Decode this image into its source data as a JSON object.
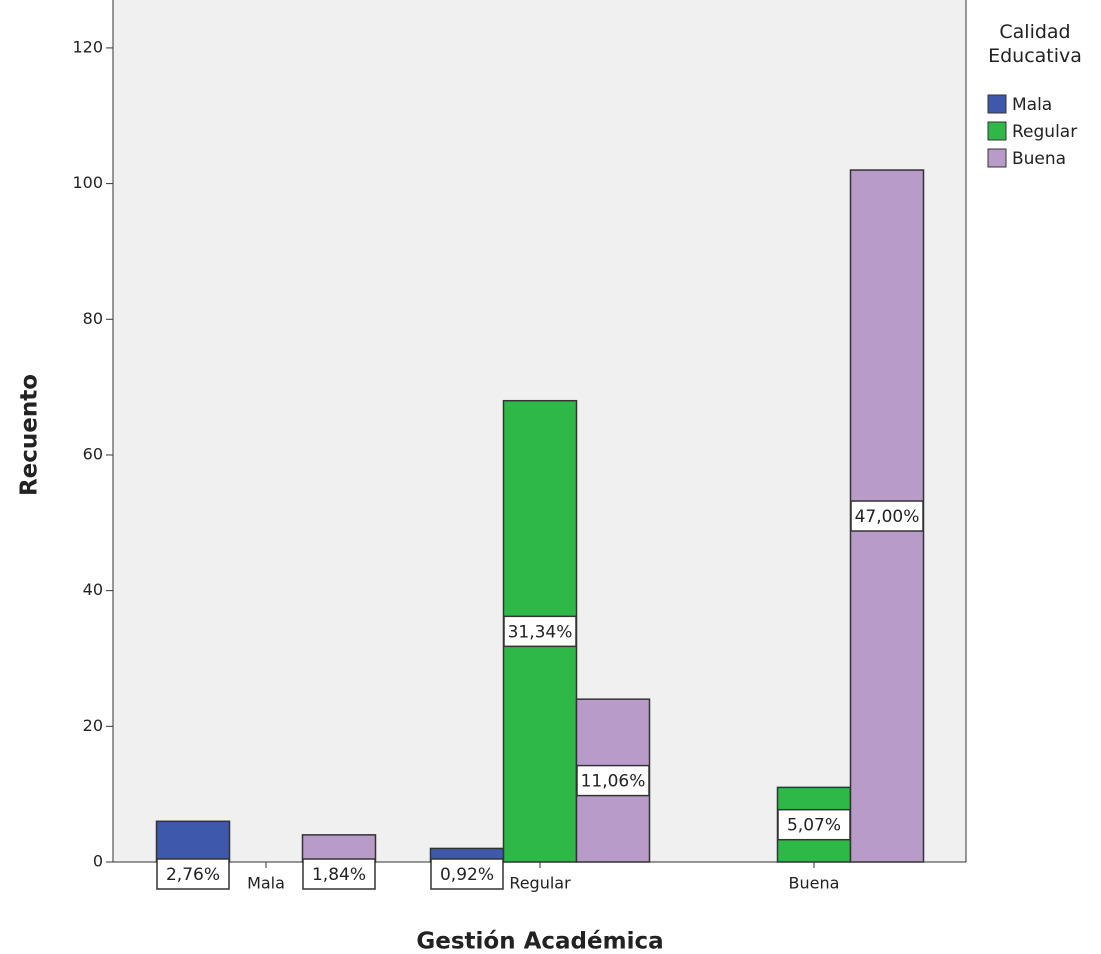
{
  "chart_data": {
    "type": "bar",
    "x_label": "Gestión Académica",
    "y_label": "Recuento",
    "legend_title": "Calidad Educativa",
    "categories": [
      "Mala",
      "Regular",
      "Buena"
    ],
    "series": [
      {
        "name": "Mala",
        "color": "#3e58ac",
        "values": [
          6,
          2,
          null
        ],
        "value_labels": [
          "2,76%",
          "0,92%",
          null
        ]
      },
      {
        "name": "Regular",
        "color": "#2eb848",
        "values": [
          null,
          68,
          11
        ],
        "value_labels": [
          null,
          "31,34%",
          "5,07%"
        ]
      },
      {
        "name": "Buena",
        "color": "#b89bc9",
        "values": [
          4,
          24,
          102
        ],
        "value_labels": [
          "1,84%",
          "11,06%",
          "47,00%"
        ]
      }
    ],
    "ylim": [
      0,
      125
    ],
    "yticks": [
      0,
      20,
      40,
      60,
      80,
      100,
      120
    ],
    "legend_position": "right"
  }
}
